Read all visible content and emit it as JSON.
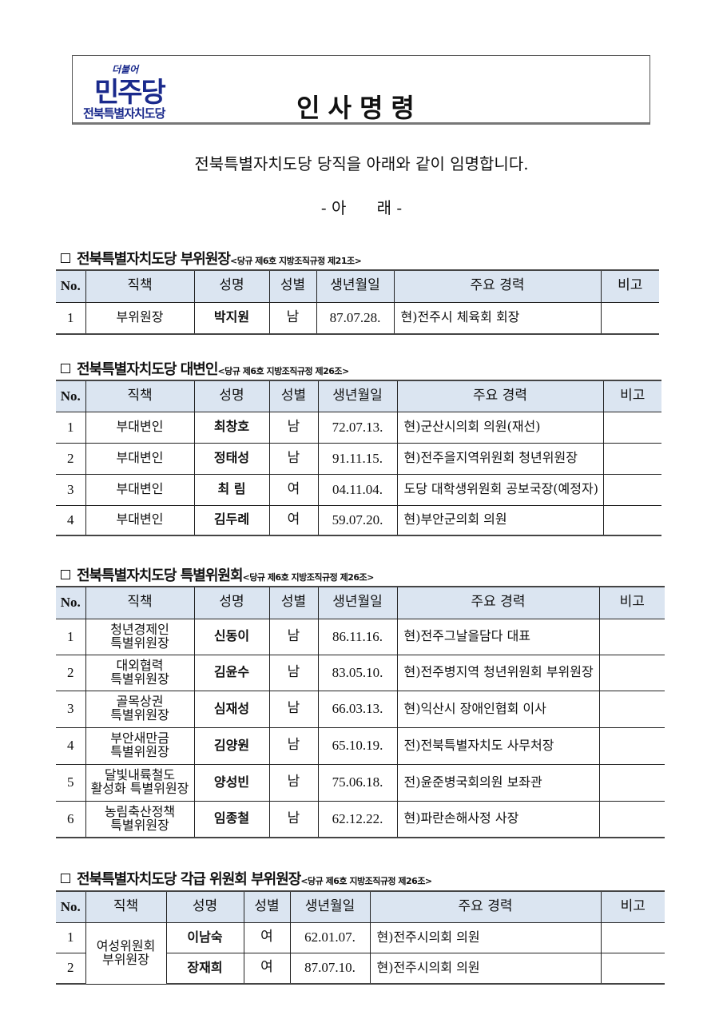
{
  "logo": {
    "small": "더불어",
    "big": "민주당",
    "sub": "전북특별자치도당",
    "color": "#1a2a8c"
  },
  "title": "인사명령",
  "intro": "전북특별자치도당 당직을 아래와 같이 임명합니다.",
  "arae": "- 아      래 -",
  "columns": [
    "No.",
    "직책",
    "성명",
    "성별",
    "생년월일",
    "주요 경력",
    "비고"
  ],
  "header_bg": "#dbe5f1",
  "sections": [
    {
      "title": "전북특별자치도당 부위원장",
      "ref": "<당규 제6호 지방조직규정 제21조>",
      "rows": [
        [
          "1",
          "부위원장",
          "박지원",
          "남",
          "87.07.28.",
          "현)전주시 체육회 회장",
          ""
        ]
      ]
    },
    {
      "title": "전북특별자치도당 대변인",
      "ref": "<당규 제6호 지방조직규정 제26조>",
      "rows": [
        [
          "1",
          "부대변인",
          "최창호",
          "남",
          "72.07.13.",
          "현)군산시의회 의원(재선)",
          ""
        ],
        [
          "2",
          "부대변인",
          "정태성",
          "남",
          "91.11.15.",
          "현)전주을지역위원회 청년위원장",
          ""
        ],
        [
          "3",
          "부대변인",
          "최 림",
          "여",
          "04.11.04.",
          "도당 대학생위원회  공보국장(예정자)",
          ""
        ],
        [
          "4",
          "부대변인",
          "김두례",
          "여",
          "59.07.20.",
          "현)부안군의회 의원",
          ""
        ]
      ]
    },
    {
      "title": "전북특별자치도당 특별위원회",
      "ref": "<당규 제6호 지방조직규정 제26조>",
      "rows": [
        [
          "1",
          "청년경제인\n특별위원장",
          "신동이",
          "남",
          "86.11.16.",
          "현)전주그날을담다 대표",
          ""
        ],
        [
          "2",
          "대외협력\n특별위원장",
          "김윤수",
          "남",
          "83.05.10.",
          "현)전주병지역 청년위원회 부위원장",
          ""
        ],
        [
          "3",
          "골목상권\n특별위원장",
          "심재성",
          "남",
          "66.03.13.",
          "현)익산시 장애인협회 이사",
          ""
        ],
        [
          "4",
          "부안새만금\n특별위원장",
          "김양원",
          "남",
          "65.10.19.",
          "전)전북특별자치도 사무처장",
          ""
        ],
        [
          "5",
          "달빛내륙철도\n활성화 특별위원장",
          "양성빈",
          "남",
          "75.06.18.",
          "전)윤준병국회의원 보좌관",
          ""
        ],
        [
          "6",
          "농림축산정책\n특별위원장",
          "임종철",
          "남",
          "62.12.22.",
          "현)파란손해사정 사장",
          ""
        ]
      ]
    },
    {
      "title": "전북특별자치도당 각급 위원회 부위원장",
      "ref": "<당규 제6호 지방조직규정 제26조>",
      "rows": [
        [
          "1",
          "여성위원회\n부위원장",
          "이남숙",
          "여",
          "62.01.07.",
          "현)전주시의회 의원",
          ""
        ],
        [
          "2",
          "",
          "장재희",
          "여",
          "87.07.10.",
          "현)전주시의회 의원",
          ""
        ]
      ]
    }
  ]
}
